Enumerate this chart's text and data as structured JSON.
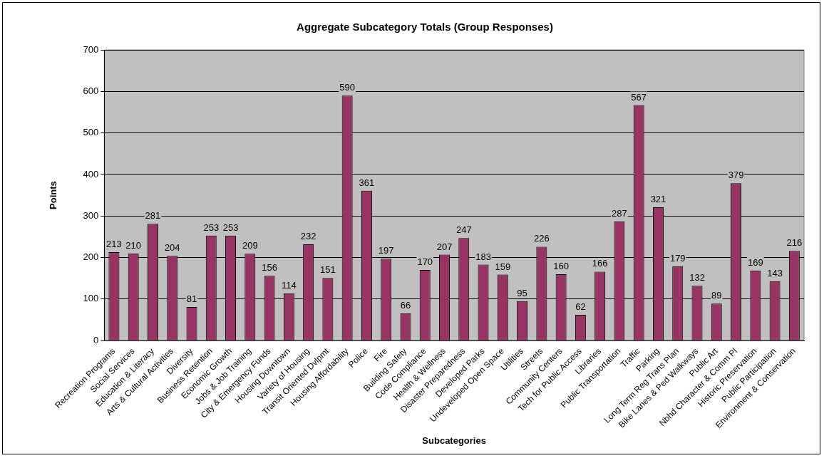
{
  "chart_data": {
    "type": "bar",
    "title": "Aggregate Subcategory Totals (Group Responses)",
    "xlabel": "Subcategories",
    "ylabel": "Points",
    "categories": [
      "Recreation Programs",
      "Social Services",
      "Education & Literacy",
      "Arts & Cultural Activities",
      "Diversity",
      "Business Retention",
      "Economic Growth",
      "Jobs & Job Training",
      "City & Emergency Funds",
      "Housing Downtown",
      "Variety of Housing",
      "Transit Oriented Dvlpmt",
      "Housing Affordability",
      "Police",
      "Fire",
      "Building Safety",
      "Code Compliance",
      "Health & Wellness",
      "Disaster Preparedness",
      "Developed Parks",
      "Undeveloped Open Space",
      "Utilities",
      "Streets",
      "Community Centers",
      "Tech for Public Access",
      "Libraries",
      "Public Transportation",
      "Traffic",
      "Parking",
      "Long Term Reg Trans Plan",
      "Bike Lanes & Ped Walkways",
      "Public Art",
      "Nbhd Character & Comm Pl",
      "Historic Preservation",
      "Public Participation",
      "Environment & Conservation"
    ],
    "values": [
      213,
      210,
      281,
      204,
      81,
      253,
      253,
      209,
      156,
      114,
      232,
      151,
      590,
      361,
      197,
      66,
      170,
      207,
      247,
      183,
      159,
      95,
      226,
      160,
      62,
      166,
      287,
      567,
      321,
      179,
      132,
      89,
      379,
      169,
      143,
      216
    ],
    "color": "#993366",
    "ylim": [
      0,
      700
    ],
    "yticks": [
      0,
      100,
      200,
      300,
      400,
      500,
      600,
      700
    ],
    "grid": "y",
    "data_labels": true,
    "legend": false
  }
}
